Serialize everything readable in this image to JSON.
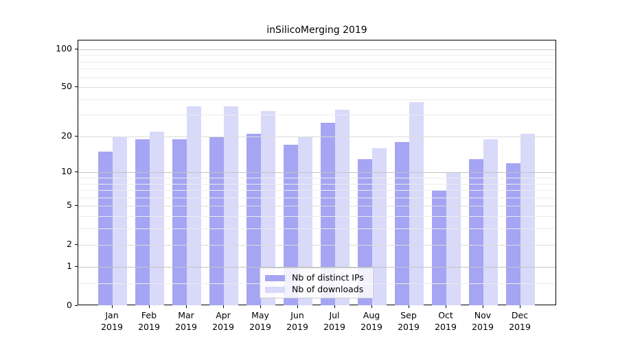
{
  "chart_data": {
    "type": "bar",
    "title": "inSilicoMerging 2019",
    "categories": [
      "Jan",
      "Feb",
      "Mar",
      "Apr",
      "May",
      "Jun",
      "Jul",
      "Aug",
      "Sep",
      "Oct",
      "Nov",
      "Dec"
    ],
    "year_label": "2019",
    "series": [
      {
        "name": "Nb of distinct IPs",
        "color": "#a5a5f3",
        "values": [
          15,
          19,
          19,
          20,
          21,
          17,
          26,
          13,
          18,
          7,
          13,
          12
        ]
      },
      {
        "name": "Nb of downloads",
        "color": "#d9d9fa",
        "values": [
          20,
          22,
          35,
          35,
          32,
          20,
          33,
          16,
          38,
          10,
          19,
          21
        ]
      }
    ],
    "yscale": "log1p",
    "ylim": [
      0,
      115
    ],
    "yticks": [
      0,
      1,
      2,
      5,
      10,
      20,
      50,
      100
    ],
    "minor_gridlines": [
      0.5,
      3,
      4,
      6,
      7,
      8,
      9,
      30,
      40,
      60,
      70,
      80,
      90
    ],
    "grid": "horizontal",
    "legend_position": "lower center"
  },
  "colors": {
    "major_gridline": "#c3c3c3",
    "mid_gridline": "#dcdcdc",
    "minor_gridline": "#ececec",
    "spine": "#000000",
    "text": "#000000",
    "legend_border": "#cccccc",
    "legend_bg": "#ffffff"
  }
}
